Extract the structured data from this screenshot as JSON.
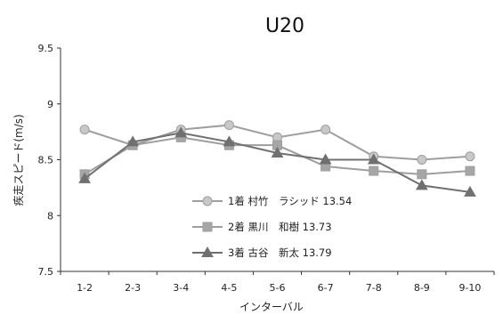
{
  "chart_data": {
    "type": "line",
    "title": "U20",
    "xlabel": "インターバル",
    "ylabel": "疾走スピード(m/s)",
    "categories": [
      "1-2",
      "2-3",
      "3-4",
      "4-5",
      "5-6",
      "6-7",
      "7-8",
      "8-9",
      "9-10"
    ],
    "ylim": [
      7.5,
      9.5
    ],
    "yticks": [
      "7.5",
      "8",
      "8.5",
      "9",
      "9.5"
    ],
    "grid": false,
    "legend_position": "center-left",
    "series": [
      {
        "name": "1着 村竹　ラシッド 13.54",
        "marker": "circle",
        "color": "#9e9e9e",
        "marker_fill": "#c8c8c8",
        "values": [
          8.77,
          8.63,
          8.77,
          8.81,
          8.7,
          8.77,
          8.53,
          8.5,
          8.53
        ]
      },
      {
        "name": "2着 黒川　和樹 13.73",
        "marker": "square",
        "color": "#9e9e9e",
        "marker_fill": "#a6a6a6",
        "values": [
          8.37,
          8.63,
          8.7,
          8.63,
          8.63,
          8.44,
          8.4,
          8.37,
          8.4
        ]
      },
      {
        "name": "3着 古谷　新太 13.79",
        "marker": "triangle",
        "color": "#707070",
        "marker_fill": "#707070",
        "values": [
          8.33,
          8.66,
          8.74,
          8.66,
          8.56,
          8.5,
          8.5,
          8.27,
          8.21
        ]
      }
    ]
  }
}
